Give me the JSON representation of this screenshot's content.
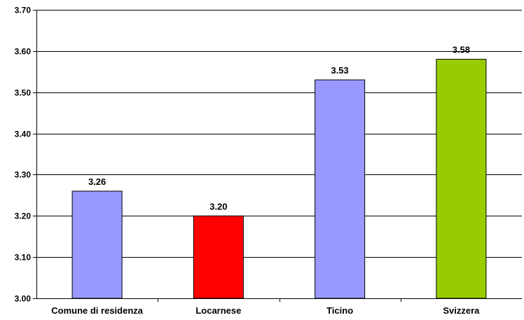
{
  "chart_data": {
    "type": "bar",
    "categories": [
      "Comune di residenza",
      "Locarnese",
      "Ticino",
      "Svizzera"
    ],
    "values": [
      3.26,
      3.2,
      3.53,
      3.58
    ],
    "value_labels": [
      "3.26",
      "3.20",
      "3.53",
      "3.58"
    ],
    "bar_colors": [
      "#9999ff",
      "#ff0000",
      "#9999ff",
      "#99cc00"
    ],
    "yticks": [
      "3.00",
      "3.10",
      "3.20",
      "3.30",
      "3.40",
      "3.50",
      "3.60",
      "3.70"
    ],
    "ylim": [
      3.0,
      3.7
    ],
    "grid": true,
    "title": "",
    "xlabel": "",
    "ylabel": ""
  }
}
